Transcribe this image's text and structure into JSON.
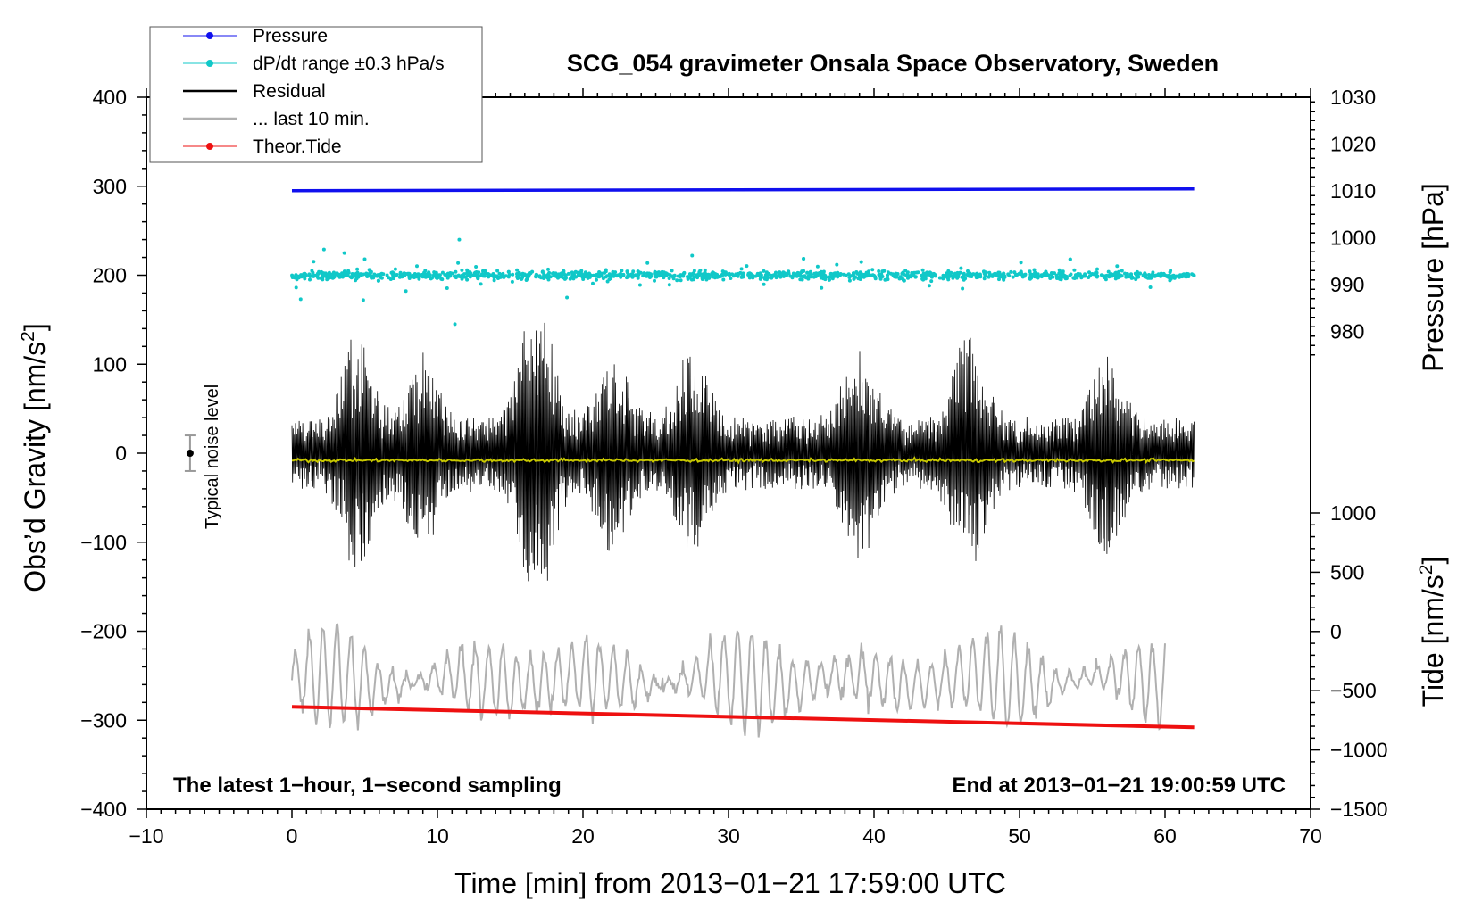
{
  "chart_data": {
    "type": "line",
    "title": "SCG_054 gravimeter Onsala Space Observatory, Sweden",
    "xlabel": "Time [min] from 2013−01−21 17:59:00 UTC",
    "ylabel_left": "Obs’d Gravity [nm/s",
    "ylabel_left_sup": "2",
    "ylabel_left_end": "]",
    "ylabel_right_pressure": "Pressure [hPa]",
    "ylabel_right_tide": "Tide [nm/s",
    "ylabel_right_tide_sup": "2",
    "ylabel_right_tide_end": "]",
    "xlim": [
      -10,
      70
    ],
    "ylim_left": [
      -400,
      400
    ],
    "x_ticks": [
      "−10",
      "0",
      "10",
      "20",
      "30",
      "40",
      "50",
      "60",
      "70"
    ],
    "y_ticks_left": [
      "400",
      "300",
      "200",
      "100",
      "0",
      "−100",
      "−200",
      "−300",
      "−400"
    ],
    "pressure_axis": {
      "range": [
        973,
        1030
      ],
      "ticks": [
        "1030",
        "1020",
        "1010",
        "1000",
        "990",
        "980"
      ]
    },
    "tide_axis": {
      "range": [
        -1500,
        1000
      ],
      "ticks": [
        "1000",
        "500",
        "0",
        "−500",
        "−1000",
        "−1500"
      ]
    },
    "annotation_left": "The latest 1−hour, 1−second sampling",
    "annotation_right": "End at 2013−01−21 19:00:59 UTC",
    "noise_label": "Typical noise level",
    "noise_bar": {
      "x": -7,
      "center": 0,
      "half_range": 20
    },
    "legend": [
      {
        "label": "Pressure",
        "color": "#1010ee",
        "marker": true
      },
      {
        "label": "dP/dt range ±0.3 hPa/s",
        "color": "#10c8c8",
        "marker": true
      },
      {
        "label": "Residual",
        "color": "#000000",
        "marker": false
      },
      {
        "label": "... last 10 min.",
        "color": "#b0b0b0",
        "marker": false
      },
      {
        "label": "Theor.Tide",
        "color": "#ee1010",
        "marker": true
      }
    ],
    "series": [
      {
        "name": "Pressure",
        "color": "#1010ee",
        "x_range": [
          0,
          62
        ],
        "y_start": 295,
        "y_end": 297,
        "note": "plotted in gravity-axis units"
      },
      {
        "name": "dP/dt range",
        "color": "#10c8c8",
        "x_range": [
          0,
          62
        ],
        "center": 200,
        "typical_spread": 10,
        "max_spread": 40
      },
      {
        "name": "Residual",
        "color": "#000000",
        "x_range": [
          0,
          62
        ],
        "center": 0,
        "typical_amplitude": 60,
        "max": 145,
        "min": -153
      },
      {
        "name": "Residual smoothed",
        "color": "#c8c800",
        "x_range": [
          0,
          62
        ],
        "center": -8
      },
      {
        "name": "... last 10 min.",
        "color": "#b0b0b0",
        "x_range": [
          0,
          60
        ],
        "center": -255,
        "amplitude": 55,
        "max": -175,
        "min": -335
      },
      {
        "name": "Theor.Tide",
        "color": "#ee1010",
        "x_range": [
          0,
          62
        ],
        "y_start": -285,
        "y_end": -308
      }
    ],
    "residual_bursts": [
      {
        "x": 4.5,
        "amplitude": 95
      },
      {
        "x": 9,
        "amplitude": 75
      },
      {
        "x": 16.8,
        "amplitude": 150
      },
      {
        "x": 22,
        "amplitude": 75
      },
      {
        "x": 27.5,
        "amplitude": 80
      },
      {
        "x": 39,
        "amplitude": 90
      },
      {
        "x": 46.5,
        "amplitude": 95
      },
      {
        "x": 56,
        "amplitude": 80
      }
    ]
  }
}
